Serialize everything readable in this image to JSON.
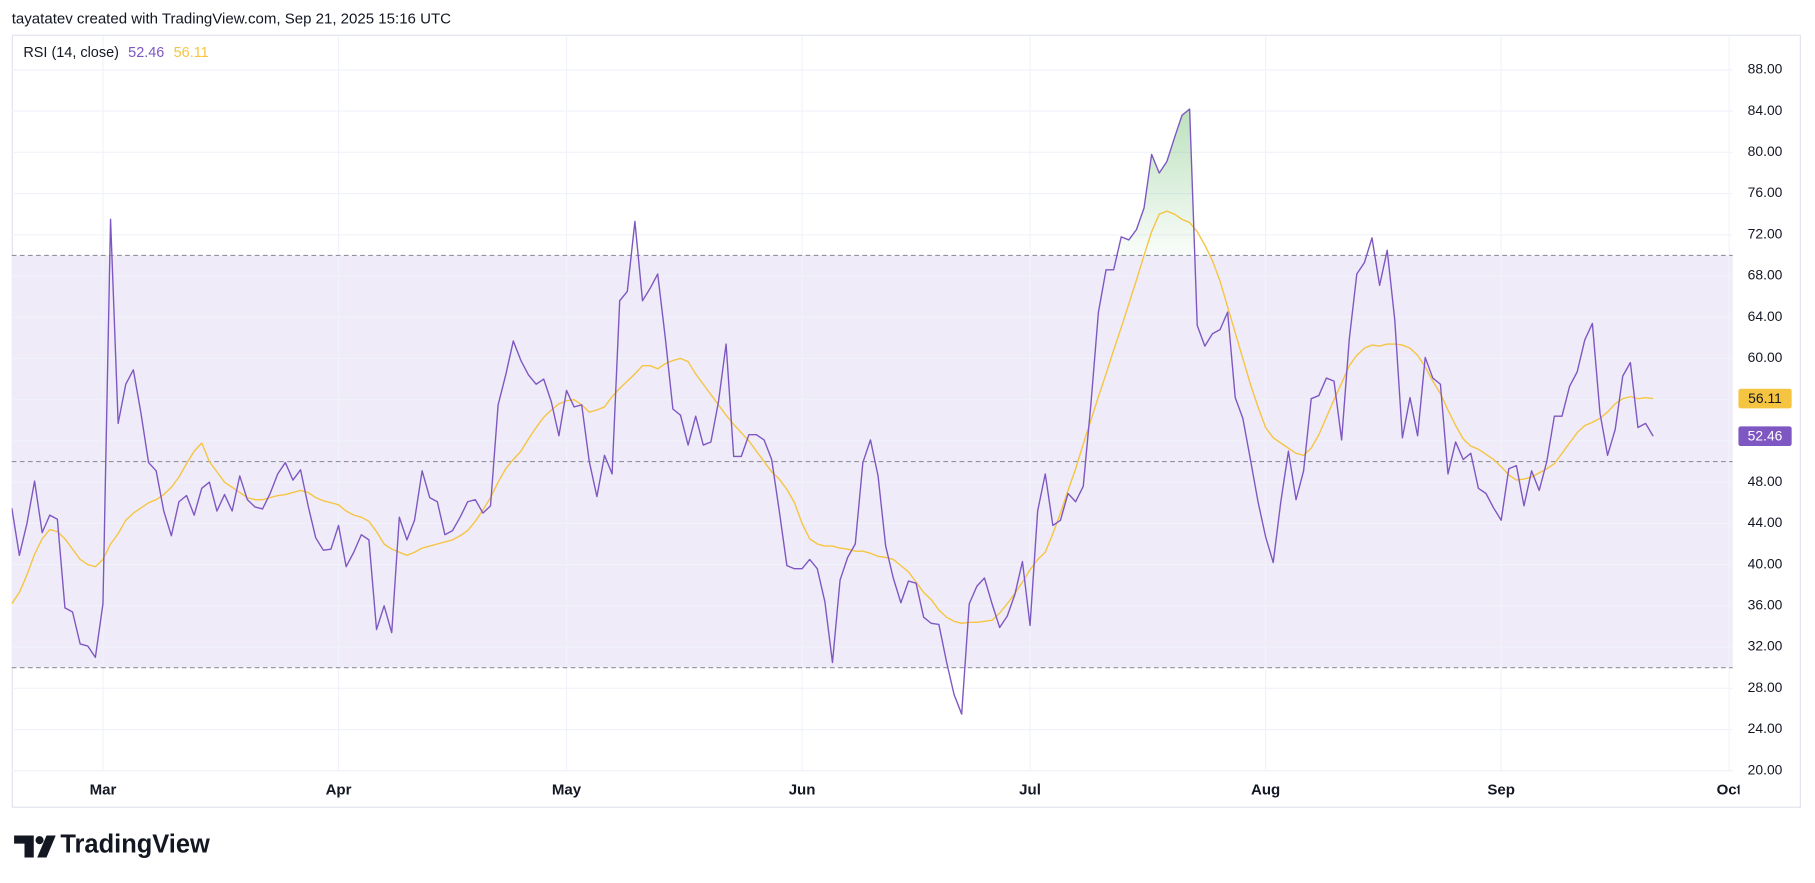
{
  "header": {
    "text": "tayatatev created with TradingView.com, Sep 21, 2025 15:16 UTC"
  },
  "chart_data": {
    "type": "line",
    "title": "RSI (14, close)",
    "categories": [
      null,
      null,
      null,
      null,
      null,
      null,
      null,
      null,
      null,
      null,
      null,
      null,
      "Mar",
      null,
      null,
      null,
      null,
      null,
      null,
      null,
      null,
      null,
      null,
      null,
      null,
      null,
      null,
      null,
      null,
      null,
      null,
      null,
      null,
      null,
      null,
      null,
      null,
      null,
      null,
      null,
      null,
      null,
      null,
      "Apr",
      null,
      null,
      null,
      null,
      null,
      null,
      null,
      null,
      null,
      null,
      null,
      null,
      null,
      null,
      null,
      null,
      null,
      null,
      null,
      null,
      null,
      null,
      null,
      null,
      null,
      null,
      null,
      null,
      null,
      "May",
      null,
      null,
      null,
      null,
      null,
      null,
      null,
      null,
      null,
      null,
      null,
      null,
      null,
      null,
      null,
      null,
      null,
      null,
      null,
      null,
      null,
      null,
      null,
      null,
      null,
      null,
      null,
      null,
      null,
      null,
      "Jun",
      null,
      null,
      null,
      null,
      null,
      null,
      null,
      null,
      null,
      null,
      null,
      null,
      null,
      null,
      null,
      null,
      null,
      null,
      null,
      null,
      null,
      null,
      null,
      null,
      null,
      null,
      null,
      null,
      null,
      "Jul",
      null,
      null,
      null,
      null,
      null,
      null,
      null,
      null,
      null,
      null,
      null,
      null,
      null,
      null,
      null,
      null,
      null,
      null,
      null,
      null,
      null,
      null,
      null,
      null,
      null,
      null,
      null,
      null,
      null,
      null,
      "Aug",
      null,
      null,
      null,
      null,
      null,
      null,
      null,
      null,
      null,
      null,
      null,
      null,
      null,
      null,
      null,
      null,
      null,
      null,
      null,
      null,
      null,
      null,
      null,
      null,
      null,
      null,
      null,
      null,
      null,
      null,
      "Sep",
      null,
      null,
      null,
      null,
      null,
      null,
      null,
      null,
      null,
      null,
      null,
      null,
      null,
      null,
      null,
      null,
      null,
      null,
      null,
      null,
      null,
      null,
      null,
      null,
      null,
      null,
      null,
      null,
      null,
      "Oct"
    ],
    "series": [
      {
        "color": "#7e57c2",
        "values": [
          45.5,
          40.9,
          44,
          48.1,
          43.1,
          44.8,
          44.4,
          35.8,
          35.4,
          32.3,
          32.1,
          31,
          36.2,
          73.5,
          53.7,
          57.5,
          58.9,
          54.7,
          49.9,
          49.1,
          45.2,
          42.8,
          46.1,
          46.7,
          44.8,
          47.4,
          48,
          45.2,
          46.8,
          45.2,
          48.6,
          46.3,
          45.6,
          45.4,
          46.9,
          48.8,
          49.9,
          48.2,
          49.2,
          45.7,
          42.6,
          41.4,
          41.5,
          43.8,
          39.8,
          41.2,
          42.9,
          42.4,
          33.7,
          36,
          33.4,
          44.6,
          42.4,
          44.3,
          49.1,
          46.5,
          46.1,
          42.9,
          43.3,
          44.6,
          46.1,
          46.3,
          45,
          45.7,
          55.5,
          58.4,
          61.7,
          59.8,
          58.4,
          57.5,
          58,
          55.8,
          52.5,
          56.9,
          55.3,
          55.5,
          50,
          46.6,
          50.6,
          48.8,
          65.6,
          66.5,
          73.3,
          65.6,
          66.8,
          68.2,
          62,
          55.1,
          54.5,
          51.6,
          54.4,
          51.6,
          51.9,
          55.8,
          61.4,
          50.5,
          50.5,
          52.6,
          52.6,
          52.1,
          50.2,
          45.2,
          39.9,
          39.6,
          39.6,
          40.5,
          39.6,
          36.4,
          30.5,
          38.5,
          40.7,
          42,
          49.9,
          52.1,
          48.6,
          41.8,
          38.7,
          36.3,
          38.4,
          38.2,
          34.9,
          34.3,
          34.2,
          30.6,
          27.4,
          25.5,
          36.2,
          37.9,
          38.7,
          36.2,
          33.9,
          35,
          37.1,
          40.3,
          34.1,
          45.2,
          48.8,
          43.8,
          44.3,
          46.9,
          46.1,
          47.6,
          55.5,
          64.5,
          68.6,
          68.6,
          71.8,
          71.5,
          72.5,
          74.6,
          79.8,
          78,
          79.1,
          81.4,
          83.6,
          84.2,
          63.2,
          61.2,
          62.4,
          62.8,
          64.5,
          56.2,
          54.2,
          50.2,
          46.1,
          42.7,
          40.2,
          46.1,
          51,
          46.3,
          49.1,
          56.1,
          56.4,
          58.1,
          57.8,
          52.1,
          61.8,
          68.2,
          69.3,
          71.7,
          67.1,
          70.5,
          63.7,
          52.3,
          56.2,
          52.5,
          60.1,
          58.1,
          57.5,
          48.8,
          51.9,
          50.2,
          50.8,
          47.4,
          46.9,
          45.5,
          44.3,
          49.3,
          49.6,
          45.7,
          49.1,
          47.2,
          50,
          54.4,
          54.4,
          57.3,
          58.7,
          61.8,
          63.4,
          54.7,
          50.6,
          53.1,
          58.3,
          59.6,
          53.3,
          53.7,
          52.46,
          null,
          null,
          null,
          null,
          null,
          null,
          null,
          null,
          null,
          null
        ]
      },
      {
        "color": "#f5c542",
        "values": [
          36.2,
          37.3,
          39,
          41,
          42.5,
          43.4,
          43.2,
          42.5,
          41.5,
          40.5,
          40,
          39.8,
          40.5,
          42,
          43,
          44.3,
          45,
          45.5,
          46,
          46.3,
          46.8,
          47.5,
          48.5,
          49.8,
          51,
          51.8,
          50,
          49,
          48,
          47.5,
          47,
          46.5,
          46.3,
          46.3,
          46.5,
          46.7,
          46.8,
          47,
          47.2,
          47,
          46.5,
          46.2,
          46,
          45.8,
          45.2,
          44.8,
          44.6,
          44.2,
          43.2,
          42,
          41.5,
          41.2,
          40.9,
          41.2,
          41.6,
          41.8,
          42,
          42.2,
          42.4,
          42.8,
          43.3,
          44.2,
          45.3,
          46.5,
          48,
          49.3,
          50.2,
          51,
          52.2,
          53.3,
          54.3,
          55,
          55.6,
          55.9,
          56,
          55.5,
          54.8,
          55,
          55.3,
          56.3,
          57.1,
          57.8,
          58.5,
          59.3,
          59.3,
          59,
          59.5,
          59.8,
          60,
          59.7,
          58.5,
          57.5,
          56.5,
          55.5,
          54.5,
          53.6,
          52.8,
          52,
          51,
          50,
          49,
          48.3,
          47.3,
          46,
          44,
          42.5,
          42,
          41.8,
          41.8,
          41.6,
          41.5,
          41.3,
          41.3,
          41.1,
          40.8,
          40.7,
          40.5,
          39.9,
          39.3,
          38.3,
          37.3,
          36.6,
          35.6,
          34.9,
          34.5,
          34.3,
          34.4,
          34.4,
          34.5,
          34.6,
          35.3,
          36.2,
          37.2,
          38.3,
          39.5,
          40.5,
          41.2,
          43,
          45,
          47.2,
          49.3,
          51.7,
          54,
          56.3,
          58.5,
          60.8,
          63,
          65.3,
          67.6,
          70,
          72.3,
          74,
          74.3,
          74,
          73.5,
          73.2,
          72.3,
          71,
          69.5,
          67.5,
          65,
          62.5,
          60,
          57.5,
          55.3,
          53.3,
          52.3,
          51.8,
          51.3,
          50.8,
          50.6,
          51.3,
          52.6,
          54.3,
          56,
          57.6,
          59.3,
          60.3,
          61,
          61.3,
          61.2,
          61.4,
          61.4,
          61.3,
          61,
          60.3,
          59.2,
          57.8,
          56.6,
          55,
          53.5,
          52.2,
          51.5,
          51.2,
          50.7,
          50.2,
          49.5,
          48.7,
          48.2,
          48.3,
          48.5,
          48.9,
          49.3,
          49.8,
          50.8,
          51.8,
          52.8,
          53.5,
          53.8,
          54.2,
          54.8,
          55.6,
          56.1,
          56.3,
          56.1,
          56.2,
          56.11,
          null,
          null,
          null,
          null,
          null,
          null,
          null,
          null,
          null,
          null
        ]
      }
    ],
    "ylim": [
      20,
      91.3
    ],
    "yticks": [
      {
        "value": 20,
        "label": "20.00"
      },
      {
        "value": 24,
        "label": "24.00"
      },
      {
        "value": 28,
        "label": "28.00"
      },
      {
        "value": 32,
        "label": "32.00"
      },
      {
        "value": 36,
        "label": "36.00"
      },
      {
        "value": 40,
        "label": "40.00"
      },
      {
        "value": 44,
        "label": "44.00"
      },
      {
        "value": 48,
        "label": "48.00"
      },
      {
        "value": 52,
        "label": "52.00"
      },
      {
        "value": 56,
        "label": "56.00"
      },
      {
        "value": 60,
        "label": "60.00"
      },
      {
        "value": 64,
        "label": "64.00"
      },
      {
        "value": 68,
        "label": "68.00"
      },
      {
        "value": 72,
        "label": "72.00"
      },
      {
        "value": 76,
        "label": "76.00"
      },
      {
        "value": 80,
        "label": "80.00"
      },
      {
        "value": 84,
        "label": "84.00"
      },
      {
        "value": 88,
        "label": "88.00"
      }
    ],
    "grid": true,
    "band_lines": [
      30,
      50,
      70
    ],
    "band_fill_color": "#efebf8",
    "overbought_fill_color": "#4caf50"
  },
  "footer": {
    "logo": "TradingView"
  }
}
